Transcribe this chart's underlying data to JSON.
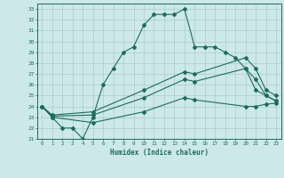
{
  "xlabel": "Humidex (Indice chaleur)",
  "bg_color": "#cce8e8",
  "grid_color": "#aacccc",
  "line_color": "#1e6b5e",
  "xlim": [
    -0.5,
    23.5
  ],
  "ylim": [
    21,
    33.5
  ],
  "xticks": [
    0,
    1,
    2,
    3,
    4,
    5,
    6,
    7,
    8,
    9,
    10,
    11,
    12,
    13,
    14,
    15,
    16,
    17,
    18,
    19,
    20,
    21,
    22,
    23
  ],
  "yticks": [
    21,
    22,
    23,
    24,
    25,
    26,
    27,
    28,
    29,
    30,
    31,
    32,
    33
  ],
  "xtick_labels": [
    "0",
    "1",
    "2",
    "3",
    "4",
    "5",
    "6",
    "7",
    "8",
    "9",
    "10",
    "11",
    "12",
    "13",
    "14",
    "15",
    "16",
    "17",
    "18",
    "19",
    "20",
    "21",
    "22",
    "23"
  ],
  "ytick_labels": [
    "21",
    "22",
    "23",
    "24",
    "25",
    "26",
    "27",
    "28",
    "29",
    "30",
    "31",
    "32",
    "33"
  ],
  "s1_x": [
    0,
    1,
    2,
    3,
    4,
    5,
    6,
    7,
    8,
    9,
    10,
    11,
    12,
    13,
    14,
    15,
    16,
    17,
    18,
    19,
    20,
    21,
    22,
    23
  ],
  "s1_y": [
    24,
    23,
    22,
    22,
    21,
    23,
    26,
    27.5,
    29,
    29.5,
    31.5,
    32.5,
    32.5,
    32.5,
    33,
    29.5,
    29.5,
    29.5,
    29,
    28.5,
    27.5,
    25.5,
    25,
    24.5
  ],
  "s2_x": [
    0,
    1,
    5,
    10,
    14,
    15,
    20,
    21,
    22,
    23
  ],
  "s2_y": [
    24,
    23.2,
    23.5,
    25.5,
    27.2,
    27,
    28.5,
    27.5,
    25.5,
    25.0
  ],
  "s3_x": [
    0,
    1,
    5,
    10,
    14,
    15,
    20,
    21,
    22,
    23
  ],
  "s3_y": [
    24,
    23.1,
    23.2,
    24.8,
    26.5,
    26.3,
    27.5,
    26.5,
    25.0,
    24.5
  ],
  "s4_x": [
    0,
    1,
    5,
    10,
    14,
    15,
    20,
    21,
    22,
    23
  ],
  "s4_y": [
    24,
    23.0,
    22.5,
    23.5,
    24.8,
    24.6,
    24.0,
    24.0,
    24.2,
    24.3
  ]
}
